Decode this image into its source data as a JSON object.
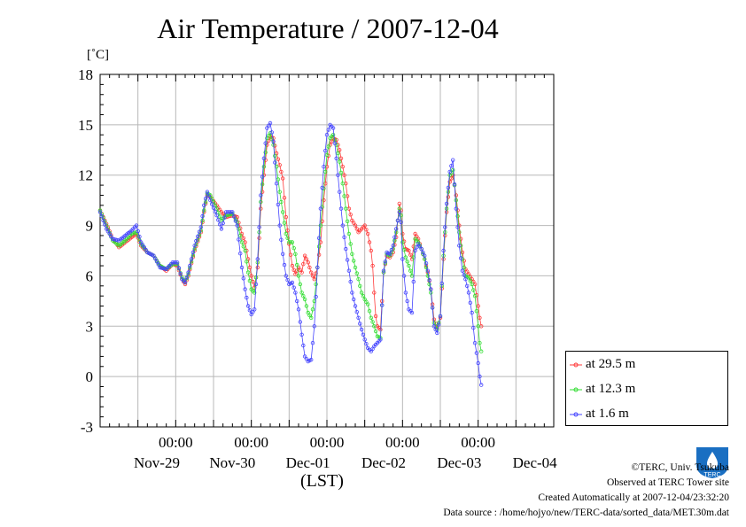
{
  "chart_data": {
    "type": "line",
    "title": "Air Temperature / 2007-12-04",
    "ylabel": "[˚C]",
    "xlabel": "(LST)",
    "ylim": [
      -3,
      18
    ],
    "yticks": [
      "18",
      "15",
      "12",
      "9",
      "6",
      "3",
      "0",
      "-3"
    ],
    "xlim_hours_from_nov28_0000": [
      0,
      144
    ],
    "x_time_labels": [
      "00:00",
      "00:00",
      "00:00",
      "00:00",
      "00:00"
    ],
    "x_date_labels": [
      "Nov-29",
      "Nov-30",
      "Dec-01",
      "Dec-02",
      "Dec-03",
      "Dec-04"
    ],
    "grid": true,
    "legend_position": "bottom-right-outside",
    "series": [
      {
        "name": "at 29.5 m",
        "color": "#ff3b3b",
        "points": [
          [
            0,
            9.9
          ],
          [
            2,
            9.1
          ],
          [
            4,
            8.2
          ],
          [
            6,
            7.7
          ],
          [
            8,
            8.0
          ],
          [
            10,
            8.3
          ],
          [
            11.5,
            8.5
          ],
          [
            13,
            7.8
          ],
          [
            15,
            7.4
          ],
          [
            17,
            7.2
          ],
          [
            19,
            6.6
          ],
          [
            21,
            6.3
          ],
          [
            23,
            6.7
          ],
          [
            24.5,
            6.6
          ],
          [
            26,
            5.8
          ],
          [
            27,
            5.5
          ],
          [
            28,
            6.0
          ],
          [
            30,
            7.5
          ],
          [
            32,
            8.6
          ],
          [
            33,
            9.8
          ],
          [
            34,
            10.8
          ],
          [
            35,
            10.7
          ],
          [
            37,
            10.2
          ],
          [
            38.5,
            9.8
          ],
          [
            40,
            9.5
          ],
          [
            42,
            9.6
          ],
          [
            43.5,
            9.5
          ],
          [
            45,
            8.5
          ],
          [
            46,
            8.0
          ],
          [
            47,
            7.0
          ],
          [
            48,
            6.0
          ],
          [
            49,
            5.3
          ],
          [
            50,
            6.5
          ],
          [
            51,
            10.0
          ],
          [
            52,
            12.0
          ],
          [
            53,
            13.8
          ],
          [
            54,
            14.3
          ],
          [
            55,
            14.2
          ],
          [
            56,
            13.3
          ],
          [
            57,
            12.6
          ],
          [
            58,
            11.8
          ],
          [
            59,
            9.5
          ],
          [
            60,
            7.9
          ],
          [
            61,
            6.6
          ],
          [
            62,
            6.1
          ],
          [
            63,
            6.5
          ],
          [
            64,
            6.2
          ],
          [
            65,
            7.2
          ],
          [
            66,
            6.8
          ],
          [
            67,
            6.2
          ],
          [
            68,
            5.8
          ],
          [
            69,
            6.5
          ],
          [
            70,
            8.0
          ],
          [
            71,
            10.5
          ],
          [
            72,
            12.5
          ],
          [
            73,
            13.8
          ],
          [
            74,
            14.2
          ],
          [
            75,
            14.1
          ],
          [
            76,
            13.5
          ],
          [
            77,
            12.5
          ],
          [
            78,
            11.5
          ],
          [
            79,
            10.0
          ],
          [
            80,
            9.3
          ],
          [
            81,
            9.0
          ],
          [
            82,
            8.6
          ],
          [
            83,
            8.8
          ],
          [
            84,
            9.0
          ],
          [
            85,
            8.5
          ],
          [
            86,
            7.5
          ],
          [
            86.5,
            6.6
          ],
          [
            87,
            5.0
          ],
          [
            87.5,
            3.6
          ],
          [
            88,
            3.0
          ],
          [
            89,
            2.8
          ],
          [
            90,
            6.2
          ],
          [
            91,
            7.2
          ],
          [
            92,
            7.1
          ],
          [
            93,
            7.4
          ],
          [
            94,
            8.3
          ],
          [
            95,
            10.3
          ],
          [
            95.5,
            9.9
          ],
          [
            96,
            8.5
          ],
          [
            97,
            7.6
          ],
          [
            98,
            7.5
          ],
          [
            99,
            7.0
          ],
          [
            100,
            8.5
          ],
          [
            101,
            8.2
          ],
          [
            102,
            7.6
          ],
          [
            103,
            7.0
          ],
          [
            104,
            6.2
          ],
          [
            105,
            5.2
          ],
          [
            106,
            3.4
          ],
          [
            107,
            2.9
          ],
          [
            108,
            3.5
          ],
          [
            109,
            7.0
          ],
          [
            110,
            9.8
          ],
          [
            111,
            11.6
          ],
          [
            112,
            12.0
          ],
          [
            113,
            10.8
          ],
          [
            114,
            9.0
          ],
          [
            115,
            7.4
          ],
          [
            116,
            6.4
          ],
          [
            117,
            6.1
          ],
          [
            118,
            5.8
          ],
          [
            119,
            5.5
          ],
          [
            120,
            4.2
          ],
          [
            120.5,
            3.5
          ],
          [
            121,
            3.0
          ]
        ]
      },
      {
        "name": "at 12.3 m",
        "color": "#33dd33",
        "points": [
          [
            0,
            9.9
          ],
          [
            2,
            9.0
          ],
          [
            4,
            8.1
          ],
          [
            6,
            7.8
          ],
          [
            8,
            8.1
          ],
          [
            10,
            8.5
          ],
          [
            11.5,
            8.6
          ],
          [
            13,
            7.9
          ],
          [
            15,
            7.4
          ],
          [
            17,
            7.2
          ],
          [
            19,
            6.6
          ],
          [
            21,
            6.4
          ],
          [
            23,
            6.7
          ],
          [
            24.5,
            6.7
          ],
          [
            26,
            5.9
          ],
          [
            27,
            5.6
          ],
          [
            28,
            6.1
          ],
          [
            30,
            7.6
          ],
          [
            32,
            8.7
          ],
          [
            33,
            9.9
          ],
          [
            34,
            10.9
          ],
          [
            35,
            10.8
          ],
          [
            37,
            10.0
          ],
          [
            38.5,
            9.3
          ],
          [
            40,
            9.6
          ],
          [
            42,
            9.7
          ],
          [
            43.5,
            9.2
          ],
          [
            45,
            8.0
          ],
          [
            46,
            7.5
          ],
          [
            47,
            6.2
          ],
          [
            48,
            5.2
          ],
          [
            49,
            5.0
          ],
          [
            50,
            6.8
          ],
          [
            51,
            10.4
          ],
          [
            52,
            12.5
          ],
          [
            53,
            14.2
          ],
          [
            54,
            14.5
          ],
          [
            55,
            13.8
          ],
          [
            56,
            12.5
          ],
          [
            57,
            11.0
          ],
          [
            58,
            9.8
          ],
          [
            59,
            8.5
          ],
          [
            60,
            8.0
          ],
          [
            61,
            8.0
          ],
          [
            62,
            7.3
          ],
          [
            63,
            6.0
          ],
          [
            64,
            5.0
          ],
          [
            65,
            4.6
          ],
          [
            66,
            3.8
          ],
          [
            67,
            3.5
          ],
          [
            68,
            4.5
          ],
          [
            69,
            6.5
          ],
          [
            70,
            9.0
          ],
          [
            71,
            11.2
          ],
          [
            72,
            13.2
          ],
          [
            73,
            14.2
          ],
          [
            74,
            14.4
          ],
          [
            75,
            13.8
          ],
          [
            76,
            12.8
          ],
          [
            77,
            11.5
          ],
          [
            78,
            10.0
          ],
          [
            79,
            8.5
          ],
          [
            80,
            7.3
          ],
          [
            81,
            6.5
          ],
          [
            82,
            5.8
          ],
          [
            83,
            5.0
          ],
          [
            84,
            4.6
          ],
          [
            85,
            4.3
          ],
          [
            86,
            3.5
          ],
          [
            87,
            3.0
          ],
          [
            88,
            2.4
          ],
          [
            89,
            2.3
          ],
          [
            90,
            6.2
          ],
          [
            91,
            7.3
          ],
          [
            92,
            7.2
          ],
          [
            93,
            7.6
          ],
          [
            94,
            8.6
          ],
          [
            95,
            10.0
          ],
          [
            95.5,
            9.6
          ],
          [
            96,
            8.0
          ],
          [
            97,
            7.1
          ],
          [
            98,
            6.6
          ],
          [
            99,
            6.0
          ],
          [
            100,
            8.2
          ],
          [
            101,
            8.0
          ],
          [
            102,
            7.6
          ],
          [
            103,
            7.0
          ],
          [
            104,
            6.0
          ],
          [
            105,
            5.0
          ],
          [
            106,
            3.2
          ],
          [
            107,
            2.8
          ],
          [
            108,
            3.6
          ],
          [
            109,
            7.2
          ],
          [
            110,
            10.0
          ],
          [
            111,
            12.0
          ],
          [
            112,
            12.3
          ],
          [
            113,
            10.5
          ],
          [
            114,
            8.6
          ],
          [
            115,
            7.0
          ],
          [
            116,
            6.0
          ],
          [
            117,
            5.9
          ],
          [
            118,
            5.5
          ],
          [
            119,
            4.8
          ],
          [
            120,
            3.0
          ],
          [
            120.5,
            2.0
          ],
          [
            121,
            1.5
          ]
        ]
      },
      {
        "name": "at 1.6 m",
        "color": "#4444ff",
        "points": [
          [
            0,
            9.8
          ],
          [
            2,
            8.8
          ],
          [
            4,
            8.2
          ],
          [
            6,
            8.1
          ],
          [
            8,
            8.4
          ],
          [
            10,
            8.7
          ],
          [
            11.5,
            9.0
          ],
          [
            13,
            8.0
          ],
          [
            15,
            7.4
          ],
          [
            17,
            7.2
          ],
          [
            19,
            6.5
          ],
          [
            21,
            6.4
          ],
          [
            23,
            6.8
          ],
          [
            24.5,
            6.8
          ],
          [
            26,
            5.8
          ],
          [
            27,
            5.6
          ],
          [
            28,
            6.2
          ],
          [
            30,
            7.8
          ],
          [
            32,
            8.9
          ],
          [
            33,
            10.2
          ],
          [
            34,
            11.0
          ],
          [
            35,
            10.5
          ],
          [
            37,
            9.6
          ],
          [
            38.5,
            8.8
          ],
          [
            40,
            9.8
          ],
          [
            42,
            9.8
          ],
          [
            43.5,
            9.0
          ],
          [
            45,
            6.5
          ],
          [
            46,
            5.2
          ],
          [
            47,
            4.2
          ],
          [
            48,
            3.7
          ],
          [
            49,
            4.0
          ],
          [
            50,
            7.0
          ],
          [
            51,
            10.8
          ],
          [
            52,
            13.0
          ],
          [
            53,
            14.8
          ],
          [
            54,
            15.1
          ],
          [
            55,
            14.0
          ],
          [
            56,
            11.5
          ],
          [
            57,
            9.0
          ],
          [
            58,
            7.3
          ],
          [
            59,
            6.0
          ],
          [
            60,
            5.5
          ],
          [
            61,
            5.6
          ],
          [
            62,
            5.0
          ],
          [
            63,
            4.0
          ],
          [
            64,
            2.5
          ],
          [
            65,
            1.2
          ],
          [
            66,
            0.9
          ],
          [
            67,
            1.0
          ],
          [
            68,
            3.0
          ],
          [
            69,
            6.5
          ],
          [
            70,
            10.0
          ],
          [
            71,
            12.5
          ],
          [
            72,
            14.4
          ],
          [
            73,
            15.0
          ],
          [
            74,
            14.8
          ],
          [
            75,
            13.0
          ],
          [
            76,
            11.0
          ],
          [
            77,
            9.0
          ],
          [
            78,
            7.6
          ],
          [
            79,
            6.3
          ],
          [
            80,
            5.0
          ],
          [
            81,
            4.2
          ],
          [
            82,
            3.5
          ],
          [
            83,
            2.8
          ],
          [
            84,
            2.2
          ],
          [
            85,
            1.7
          ],
          [
            86,
            1.5
          ],
          [
            87,
            1.8
          ],
          [
            88,
            2.0
          ],
          [
            89,
            2.2
          ],
          [
            90,
            6.3
          ],
          [
            91,
            7.4
          ],
          [
            92,
            7.3
          ],
          [
            93,
            7.8
          ],
          [
            94,
            8.8
          ],
          [
            95,
            9.8
          ],
          [
            95.5,
            9.2
          ],
          [
            96,
            7.0
          ],
          [
            97,
            5.0
          ],
          [
            98,
            4.0
          ],
          [
            99,
            3.8
          ],
          [
            100,
            7.5
          ],
          [
            101,
            7.9
          ],
          [
            102,
            7.6
          ],
          [
            103,
            7.2
          ],
          [
            104,
            6.3
          ],
          [
            105,
            5.2
          ],
          [
            106,
            3.0
          ],
          [
            107,
            2.6
          ],
          [
            108,
            3.6
          ],
          [
            109,
            7.5
          ],
          [
            110,
            10.3
          ],
          [
            111,
            12.2
          ],
          [
            112,
            12.9
          ],
          [
            113,
            10.0
          ],
          [
            114,
            7.8
          ],
          [
            115,
            6.3
          ],
          [
            116,
            5.8
          ],
          [
            117,
            5.0
          ],
          [
            118,
            3.8
          ],
          [
            119,
            2.0
          ],
          [
            120,
            0.8
          ],
          [
            120.5,
            0.0
          ],
          [
            121,
            -0.5
          ]
        ]
      }
    ]
  },
  "credits": {
    "copyright": "©TERC, Univ. Tsukuba",
    "observed": "Observed at TERC Tower site",
    "created": "Created Automatically at 2007-12-04/23:32:20",
    "source": "Data source : /home/hojyo/new/TERC-data/sorted_data/MET.30m.dat"
  },
  "logo": {
    "text": "TERC",
    "color": "#1a6fc2"
  }
}
